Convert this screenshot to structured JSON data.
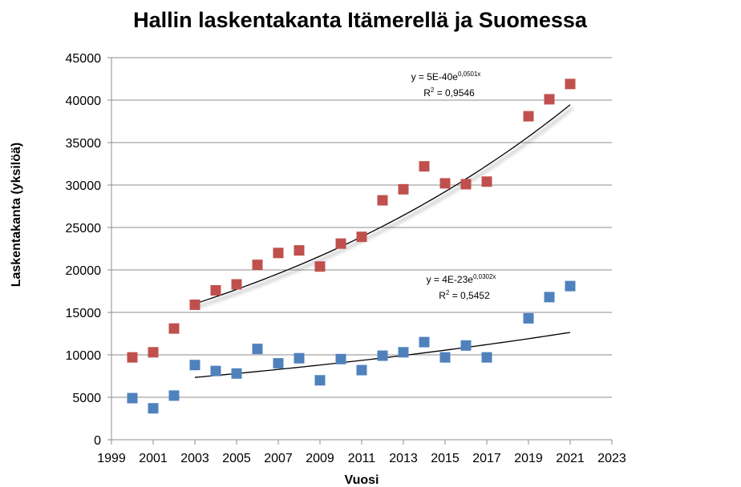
{
  "chart_data": {
    "type": "scatter",
    "title": "Hallin laskentakanta Itämerellä ja Suomessa",
    "xlabel": "Vuosi",
    "ylabel": "Laskentakanta (yksilöä)",
    "xlim": [
      1999,
      2023
    ],
    "ylim": [
      0,
      45000
    ],
    "xticks": [
      1999,
      2001,
      2003,
      2005,
      2007,
      2009,
      2011,
      2013,
      2015,
      2017,
      2019,
      2021,
      2023
    ],
    "yticks": [
      0,
      5000,
      10000,
      15000,
      20000,
      25000,
      30000,
      35000,
      40000,
      45000
    ],
    "grid": "horizontal",
    "legend": "none",
    "series": [
      {
        "color": "#c0504d",
        "marker": "square",
        "x": [
          2000,
          2001,
          2002,
          2003,
          2004,
          2005,
          2006,
          2007,
          2008,
          2009,
          2010,
          2011,
          2012,
          2013,
          2014,
          2015,
          2016,
          2017,
          2019,
          2020,
          2021
        ],
        "y": [
          9700,
          10300,
          13100,
          15900,
          17600,
          18300,
          20600,
          22000,
          22300,
          20400,
          23100,
          23900,
          28200,
          29500,
          32200,
          30200,
          30100,
          30400,
          38100,
          40100,
          41900
        ],
        "trendline": {
          "type": "exponential",
          "a": 5e-40,
          "b": 0.0501,
          "equation_prefix": "y = 5E-40e",
          "equation_exponent": "0,0501x",
          "r2_prefix": "R",
          "r2_sup": "2",
          "r2_value": " = 0,9546",
          "x_range": [
            2003,
            2021
          ],
          "color": "#000000"
        }
      },
      {
        "color": "#4f81bd",
        "marker": "square",
        "x": [
          2000,
          2001,
          2002,
          2003,
          2004,
          2005,
          2006,
          2007,
          2008,
          2009,
          2010,
          2011,
          2012,
          2013,
          2014,
          2015,
          2016,
          2017,
          2019,
          2020,
          2021
        ],
        "y": [
          4900,
          3700,
          5200,
          8800,
          8100,
          7800,
          10700,
          9000,
          9600,
          7000,
          9500,
          8200,
          9900,
          10300,
          11500,
          9700,
          11100,
          9700,
          14300,
          16800,
          18100
        ],
        "trendline": {
          "type": "exponential",
          "a": 4e-23,
          "b": 0.0302,
          "equation_prefix": "y = 4E-23e",
          "equation_exponent": "0,0302x",
          "r2_prefix": "R",
          "r2_sup": "2",
          "r2_value": " = 0,5452",
          "x_range": [
            2003,
            2021
          ],
          "color": "#000000"
        }
      }
    ]
  }
}
